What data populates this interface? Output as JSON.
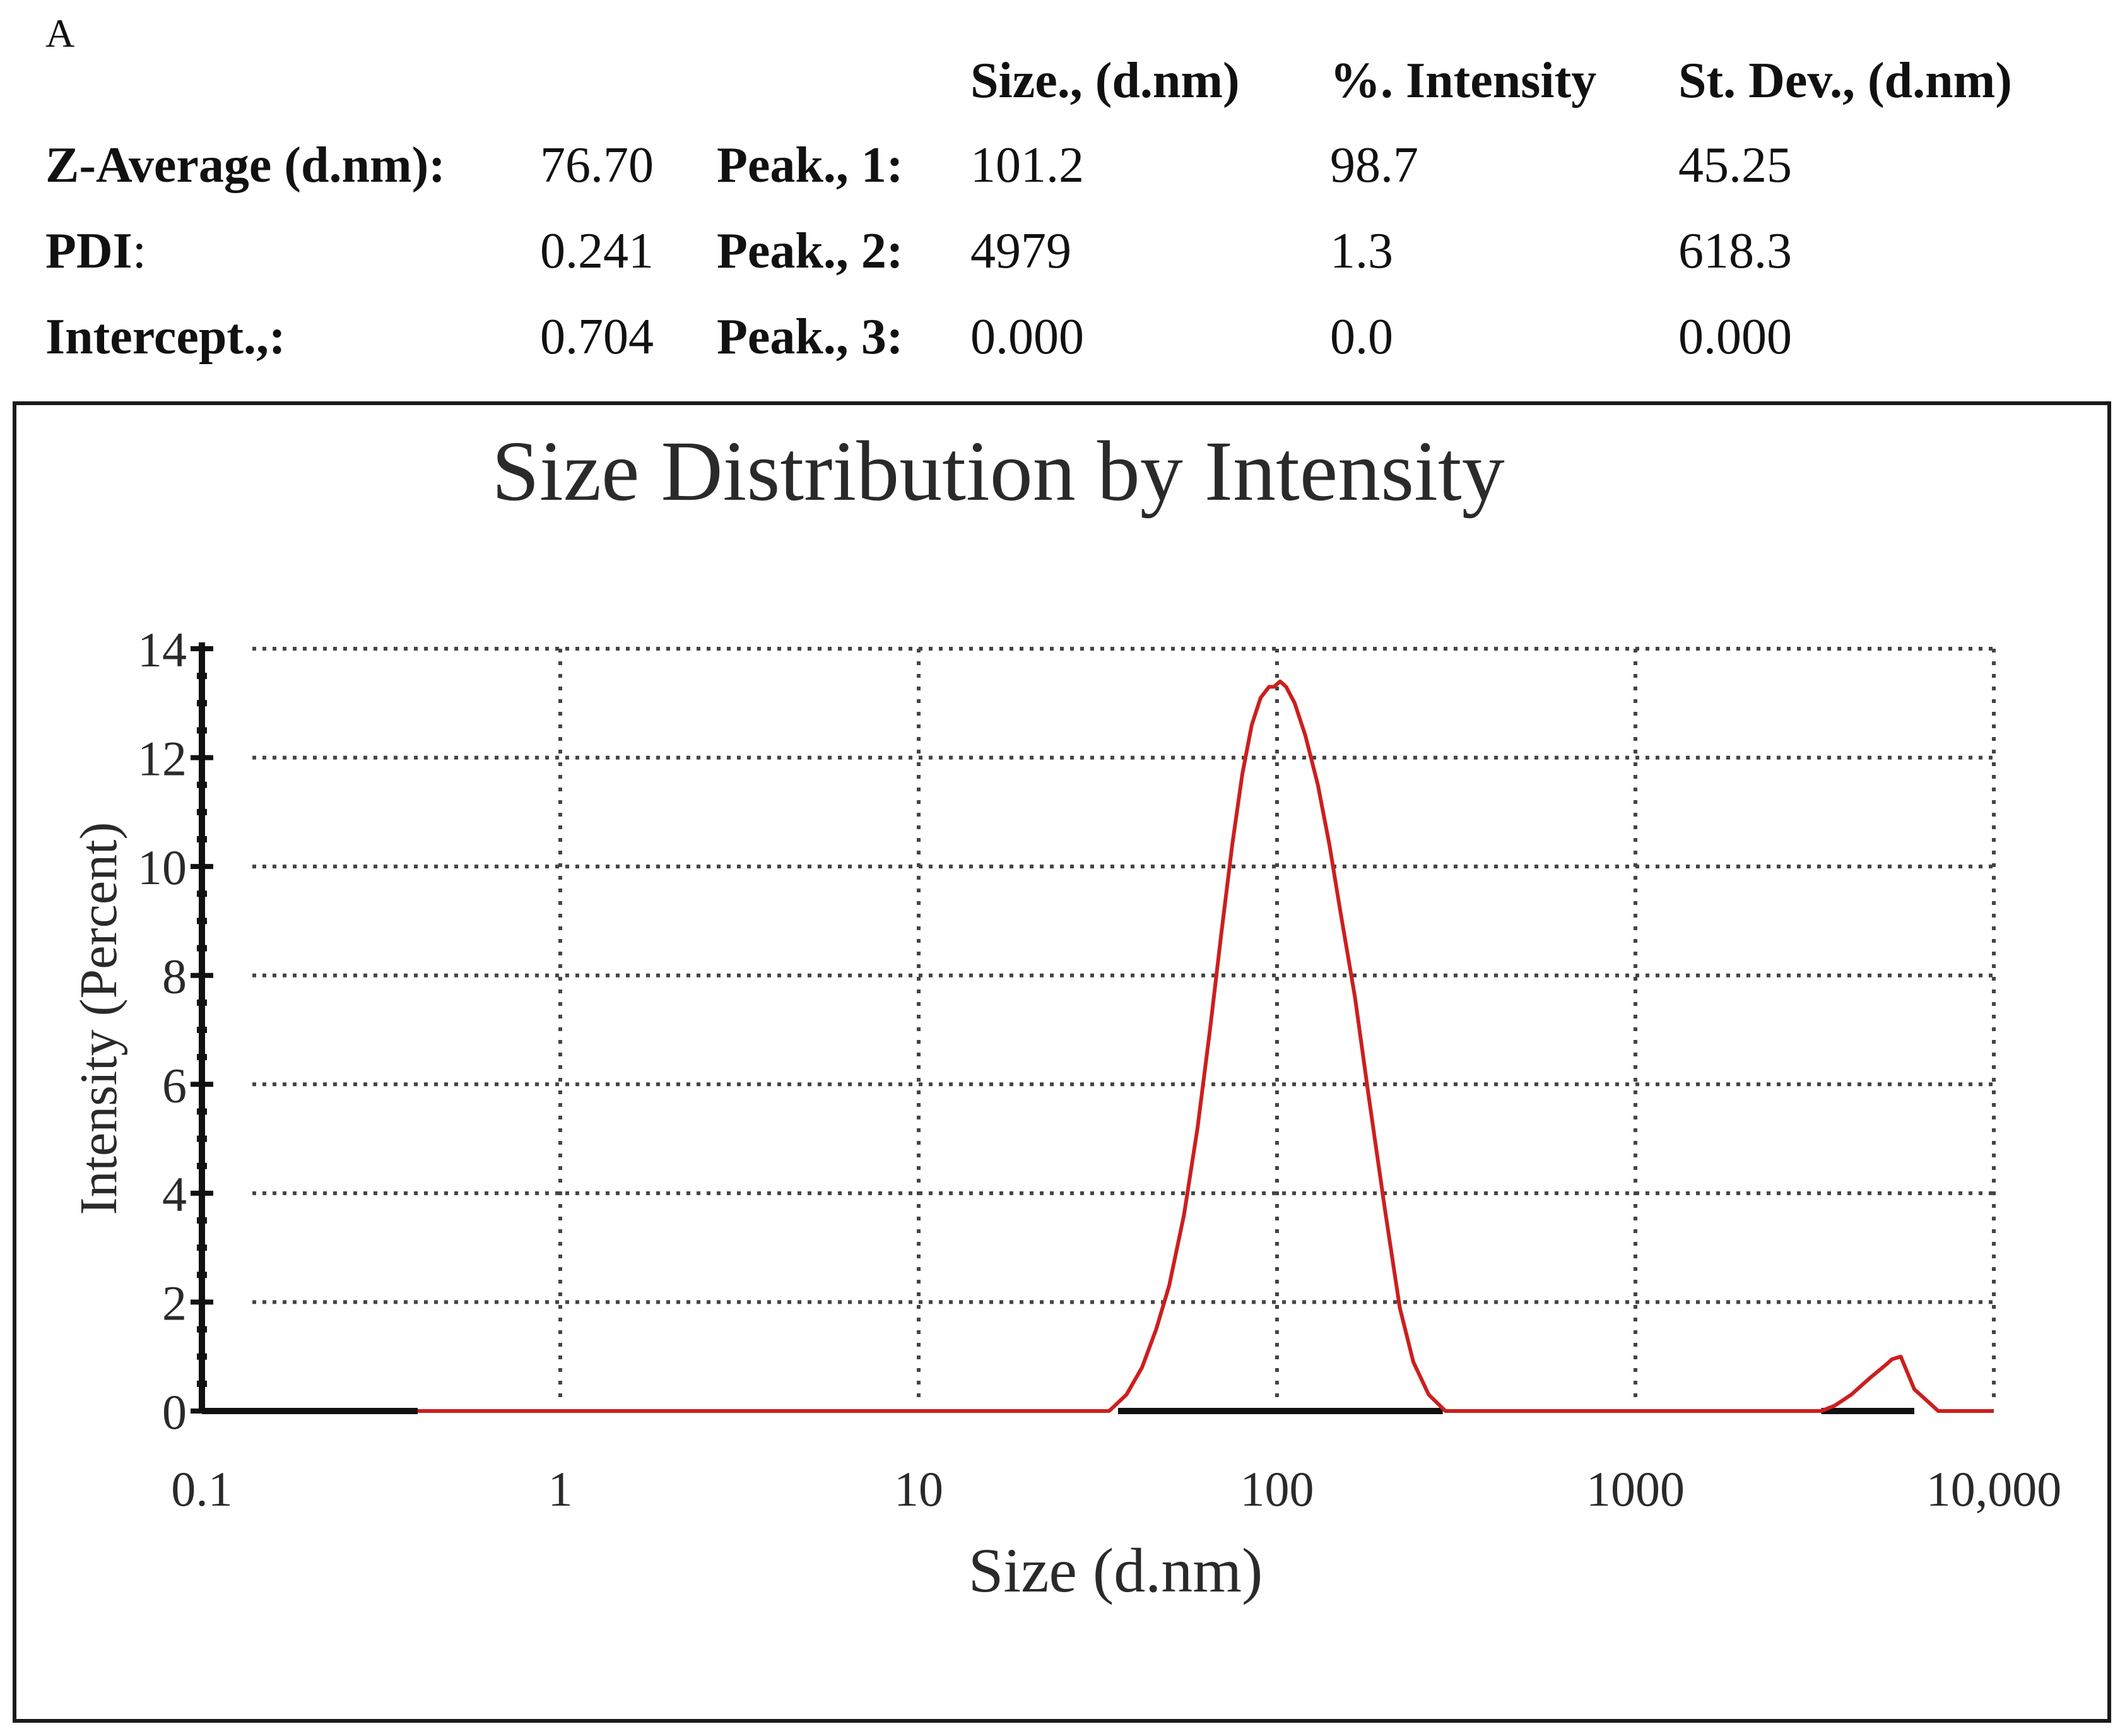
{
  "panel_label": "A",
  "summary": {
    "col_size": "Size., (d.nm)",
    "col_intensity": "%. Intensity",
    "col_stdev": "St. Dev., (d.nm)",
    "z_average_label": "Z-Average (d.nm):",
    "z_average_value": "76.70",
    "pdi_label": "PDI",
    "pdi_colon": ":",
    "pdi_value": "0.241",
    "intercept_label": "Intercept.,:",
    "intercept_value": "0.704",
    "peaks": [
      {
        "label": "Peak., 1:",
        "size": "101.2",
        "intensity": "98.7",
        "stdev": "45.25"
      },
      {
        "label": "Peak., 2:",
        "size": "4979",
        "intensity": "1.3",
        "stdev": "618.3"
      },
      {
        "label": "Peak., 3:",
        "size": "0.000",
        "intensity": "0.0",
        "stdev": "0.000"
      }
    ]
  },
  "colors": {
    "curve": "#cc1f1f",
    "axis": "#111111",
    "grid": "#444444",
    "baseline": "#111111"
  },
  "chart_data": {
    "type": "line",
    "title": "Size Distribution by Intensity",
    "xlabel": "Size (d.nm)",
    "ylabel": "Intensity (Percent)",
    "xscale": "log",
    "xlim": [
      0.1,
      10000
    ],
    "ylim": [
      0,
      14
    ],
    "x_ticks": [
      0.1,
      1,
      10,
      100,
      1000,
      10000
    ],
    "x_tick_labels": [
      "0.1",
      "1",
      "10",
      "100",
      "1000",
      "10,000"
    ],
    "y_ticks": [
      0,
      2,
      4,
      6,
      8,
      10,
      12,
      14
    ],
    "y_tick_labels": [
      "0",
      "2",
      "4",
      "6",
      "8",
      "10",
      "12",
      "14"
    ],
    "grid": "dotted",
    "series": [
      {
        "name": "Intensity",
        "x": [
          0.4,
          1,
          10,
          34,
          38,
          42,
          46,
          50,
          55,
          60,
          65,
          70,
          75,
          80,
          85,
          90,
          95,
          98,
          102,
          106,
          112,
          120,
          130,
          140,
          150,
          165,
          180,
          200,
          220,
          240,
          265,
          295,
          500,
          1000,
          1700,
          3300,
          3600,
          4000,
          4500,
          5000,
          5200,
          5500,
          6000,
          7000,
          10000
        ],
        "y": [
          0,
          0,
          0,
          0,
          0.3,
          0.8,
          1.5,
          2.3,
          3.6,
          5.2,
          7.0,
          8.8,
          10.4,
          11.7,
          12.6,
          13.1,
          13.3,
          13.3,
          13.4,
          13.3,
          13.0,
          12.4,
          11.5,
          10.4,
          9.2,
          7.6,
          5.8,
          3.7,
          1.9,
          0.9,
          0.3,
          0,
          0,
          0,
          0,
          0,
          0.1,
          0.3,
          0.6,
          0.85,
          0.95,
          1.0,
          0.4,
          0,
          0
        ]
      }
    ],
    "baseline_segments": [
      [
        0.1,
        0.4
      ],
      [
        36,
        290
      ],
      [
        3300,
        6000
      ]
    ]
  }
}
